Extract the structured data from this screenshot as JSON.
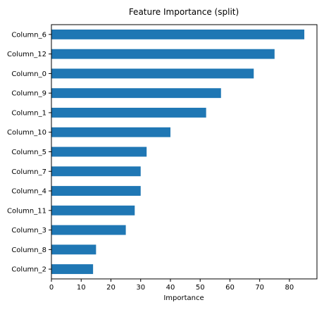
{
  "chart_data": {
    "type": "bar",
    "orientation": "horizontal",
    "title": "Feature Importance (split)",
    "xlabel": "Importance",
    "ylabel": "",
    "categories": [
      "Column_6",
      "Column_12",
      "Column_0",
      "Column_9",
      "Column_1",
      "Column_10",
      "Column_5",
      "Column_7",
      "Column_4",
      "Column_11",
      "Column_3",
      "Column_8",
      "Column_2"
    ],
    "values": [
      85,
      75,
      68,
      57,
      52,
      40,
      32,
      30,
      30,
      28,
      25,
      15,
      14
    ],
    "xlim": [
      0,
      89.25
    ],
    "xticks": [
      0,
      10,
      20,
      30,
      40,
      50,
      60,
      70,
      80
    ],
    "grid": false,
    "bar_color": "#1f77b4"
  }
}
